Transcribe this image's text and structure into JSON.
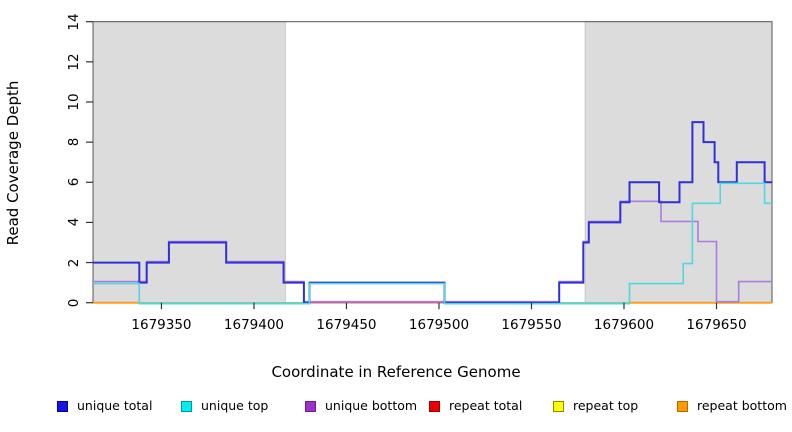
{
  "chart_data": {
    "type": "line",
    "step": true,
    "title": "",
    "xlabel": "Coordinate in Reference Genome",
    "ylabel": "Read Coverage Depth",
    "xlim": [
      1679313,
      1679680
    ],
    "ylim": [
      0,
      14
    ],
    "xticks": [
      1679350,
      1679400,
      1679450,
      1679500,
      1679550,
      1679600,
      1679650
    ],
    "yticks": [
      0,
      2,
      4,
      6,
      8,
      10,
      12,
      14
    ],
    "grid": false,
    "legend_position": "bottom",
    "shaded_regions": [
      {
        "from": 1679313,
        "to": 1679417,
        "color": "#dcdcdc"
      },
      {
        "from": 1679579,
        "to": 1679680,
        "color": "#dcdcdc"
      }
    ],
    "series": [
      {
        "name": "unique total",
        "line_color": "#3030d8",
        "legend_fill": "#1414e0",
        "legend_border": "#0000b0",
        "line_width": 2,
        "points": [
          [
            1679313,
            2
          ],
          [
            1679338,
            1
          ],
          [
            1679342,
            2
          ],
          [
            1679354,
            3
          ],
          [
            1679385,
            2
          ],
          [
            1679416,
            1
          ],
          [
            1679427,
            0
          ],
          [
            1679430,
            1
          ],
          [
            1679503,
            0
          ],
          [
            1679565,
            1
          ],
          [
            1679578,
            3
          ],
          [
            1679581,
            4
          ],
          [
            1679598,
            5
          ],
          [
            1679603,
            6
          ],
          [
            1679619,
            5
          ],
          [
            1679630,
            6
          ],
          [
            1679637,
            9
          ],
          [
            1679643,
            8
          ],
          [
            1679649,
            7
          ],
          [
            1679651,
            6
          ],
          [
            1679661,
            7
          ],
          [
            1679676,
            6
          ]
        ]
      },
      {
        "name": "unique top",
        "line_color": "#4fd8de",
        "legend_fill": "#00eeee",
        "legend_border": "#009898",
        "line_width": 1.6,
        "points": [
          [
            1679313,
            1
          ],
          [
            1679338,
            0
          ],
          [
            1679430,
            1
          ],
          [
            1679503,
            0
          ],
          [
            1679603,
            1
          ],
          [
            1679632,
            2
          ],
          [
            1679637,
            5
          ],
          [
            1679652,
            6
          ],
          [
            1679676,
            5
          ]
        ]
      },
      {
        "name": "unique bottom",
        "line_color": "#ab7ce0",
        "legend_fill": "#9932cc",
        "legend_border": "#6a1f96",
        "line_width": 1.6,
        "points": [
          [
            1679313,
            1
          ],
          [
            1679342,
            2
          ],
          [
            1679354,
            3
          ],
          [
            1679385,
            2
          ],
          [
            1679416,
            1
          ],
          [
            1679427,
            0
          ],
          [
            1679565,
            1
          ],
          [
            1679578,
            3
          ],
          [
            1679581,
            4
          ],
          [
            1679598,
            5
          ],
          [
            1679620,
            4
          ],
          [
            1679640,
            3
          ],
          [
            1679650,
            0
          ],
          [
            1679662,
            1
          ]
        ]
      },
      {
        "name": "repeat total",
        "line_color": "#cc5a6e",
        "legend_fill": "#ee0000",
        "legend_border": "#990000",
        "line_width": 1.2,
        "points": [
          [
            1679313,
            0
          ]
        ]
      },
      {
        "name": "repeat top",
        "line_color": "#eeee00",
        "legend_fill": "#ffff00",
        "legend_border": "#8b8b00",
        "line_width": 1.2,
        "points": [
          [
            1679313,
            0
          ]
        ]
      },
      {
        "name": "repeat bottom",
        "line_color": "#ff9d1e",
        "legend_fill": "#ff9900",
        "legend_border": "#b36b00",
        "line_width": 2,
        "points": [
          [
            1679313,
            0
          ]
        ]
      }
    ],
    "baseline_segments": [
      {
        "color": "#ff9d1e",
        "from": 1679313,
        "to": 1679338,
        "width": 2
      },
      {
        "color": "#8cc98c",
        "from": 1679338,
        "to": 1679427,
        "width": 1.3
      },
      {
        "color": "#cc5a6e",
        "from": 1679430,
        "to": 1679503,
        "width": 1.3
      },
      {
        "color": "#8cc98c",
        "from": 1679565,
        "to": 1679603,
        "width": 1.3
      },
      {
        "color": "#ff9d1e",
        "from": 1679603,
        "to": 1679680,
        "width": 2
      }
    ]
  }
}
